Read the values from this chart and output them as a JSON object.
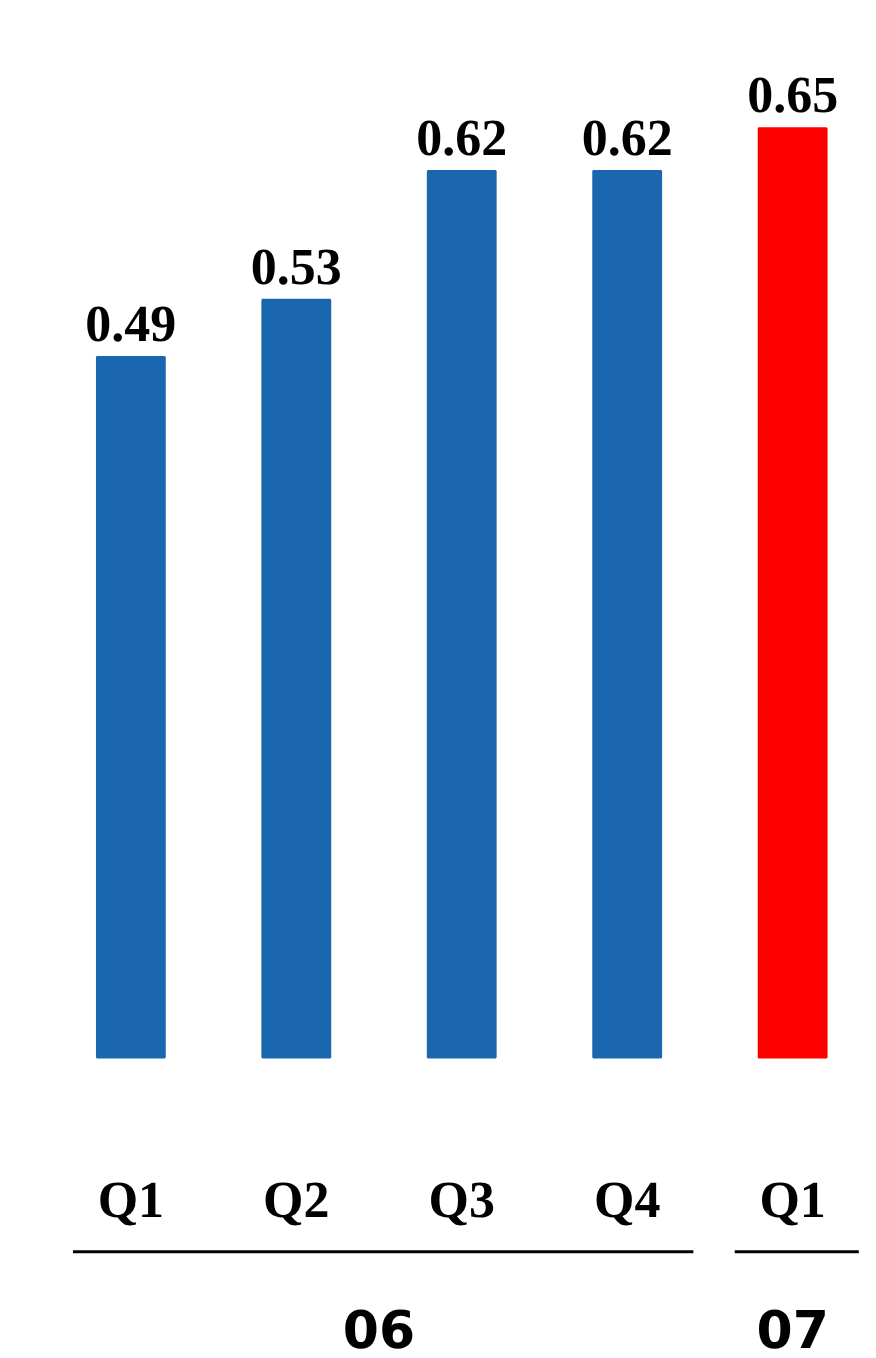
{
  "chart_data": {
    "type": "bar",
    "categories": [
      "Q1",
      "Q2",
      "Q3",
      "Q4",
      "Q1"
    ],
    "values": [
      0.49,
      0.53,
      0.62,
      0.62,
      0.65
    ],
    "colors": [
      "#1a67b0",
      "#1a67b0",
      "#1a67b0",
      "#1a67b0",
      "#ff0000"
    ],
    "data_labels": true,
    "annotations": [
      "06",
      "07"
    ]
  }
}
